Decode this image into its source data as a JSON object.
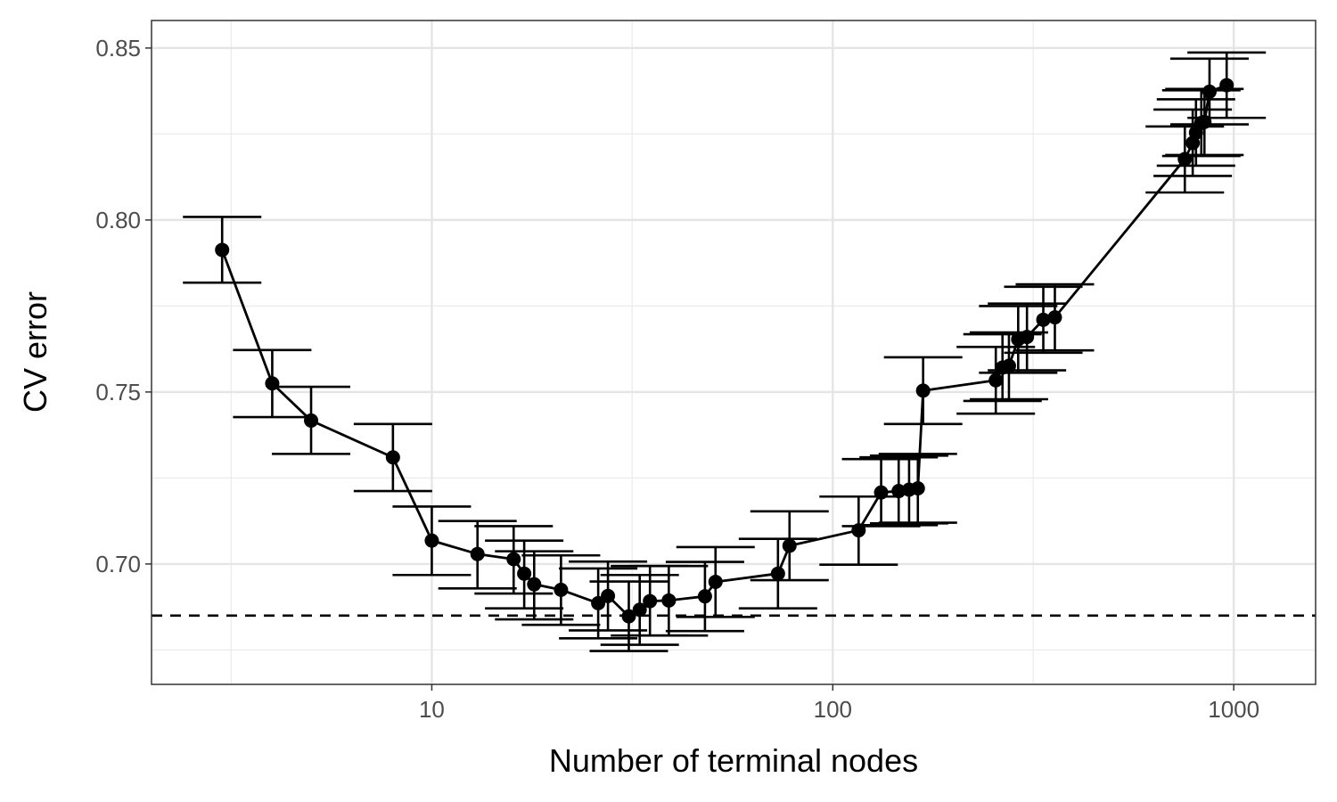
{
  "chart_data": {
    "type": "scatter",
    "xlabel": "Number of terminal nodes",
    "ylabel": "CV error",
    "x_scale": "log10",
    "xlim": [
      2,
      1600
    ],
    "ylim": [
      0.665,
      0.858
    ],
    "x_ticks": [
      10,
      100,
      1000
    ],
    "x_tick_labels": [
      "10",
      "100",
      "1000"
    ],
    "x_minor_ticks": [
      3.16,
      31.6,
      316
    ],
    "y_ticks": [
      0.7,
      0.75,
      0.8,
      0.85
    ],
    "y_tick_labels": [
      "0.70",
      "0.75",
      "0.80",
      "0.85"
    ],
    "y_minor_ticks": [
      0.675,
      0.725,
      0.775,
      0.825
    ],
    "grid": true,
    "reference_line": {
      "y": 0.685,
      "style": "dashed"
    },
    "points": [
      {
        "x": 3,
        "y": 0.7913,
        "lo": 0.7818,
        "hi": 0.8009
      },
      {
        "x": 4,
        "y": 0.7525,
        "lo": 0.7427,
        "hi": 0.7622
      },
      {
        "x": 5,
        "y": 0.7417,
        "lo": 0.732,
        "hi": 0.7515
      },
      {
        "x": 8,
        "y": 0.731,
        "lo": 0.7212,
        "hi": 0.7407
      },
      {
        "x": 10,
        "y": 0.7068,
        "lo": 0.6968,
        "hi": 0.7167
      },
      {
        "x": 13,
        "y": 0.7029,
        "lo": 0.6929,
        "hi": 0.7125
      },
      {
        "x": 16,
        "y": 0.7014,
        "lo": 0.6914,
        "hi": 0.711
      },
      {
        "x": 17,
        "y": 0.6972,
        "lo": 0.6871,
        "hi": 0.7068
      },
      {
        "x": 18,
        "y": 0.6941,
        "lo": 0.6839,
        "hi": 0.7037
      },
      {
        "x": 21,
        "y": 0.6925,
        "lo": 0.6823,
        "hi": 0.7025
      },
      {
        "x": 26,
        "y": 0.6886,
        "lo": 0.6784,
        "hi": 0.6987
      },
      {
        "x": 27.5,
        "y": 0.6907,
        "lo": 0.6807,
        "hi": 0.7007
      },
      {
        "x": 31,
        "y": 0.6848,
        "lo": 0.6747,
        "hi": 0.6949
      },
      {
        "x": 33,
        "y": 0.6867,
        "lo": 0.6765,
        "hi": 0.6968
      },
      {
        "x": 35,
        "y": 0.6892,
        "lo": 0.6792,
        "hi": 0.6994
      },
      {
        "x": 39,
        "y": 0.6894,
        "lo": 0.6792,
        "hi": 0.6994
      },
      {
        "x": 48,
        "y": 0.6906,
        "lo": 0.6805,
        "hi": 0.7006
      },
      {
        "x": 51,
        "y": 0.6948,
        "lo": 0.6846,
        "hi": 0.7049
      },
      {
        "x": 73,
        "y": 0.6972,
        "lo": 0.6871,
        "hi": 0.7073
      },
      {
        "x": 78,
        "y": 0.7053,
        "lo": 0.6953,
        "hi": 0.7153
      },
      {
        "x": 116,
        "y": 0.7098,
        "lo": 0.6998,
        "hi": 0.7196
      },
      {
        "x": 132,
        "y": 0.7208,
        "lo": 0.711,
        "hi": 0.7305
      },
      {
        "x": 146,
        "y": 0.7212,
        "lo": 0.7113,
        "hi": 0.731
      },
      {
        "x": 155,
        "y": 0.7216,
        "lo": 0.7118,
        "hi": 0.7315
      },
      {
        "x": 163,
        "y": 0.722,
        "lo": 0.712,
        "hi": 0.732
      },
      {
        "x": 168,
        "y": 0.7504,
        "lo": 0.7407,
        "hi": 0.7601
      },
      {
        "x": 255,
        "y": 0.7534,
        "lo": 0.7437,
        "hi": 0.7631
      },
      {
        "x": 265,
        "y": 0.7571,
        "lo": 0.7474,
        "hi": 0.7668
      },
      {
        "x": 275,
        "y": 0.7576,
        "lo": 0.7479,
        "hi": 0.7673
      },
      {
        "x": 290,
        "y": 0.7653,
        "lo": 0.7556,
        "hi": 0.775
      },
      {
        "x": 305,
        "y": 0.766,
        "lo": 0.7563,
        "hi": 0.7757
      },
      {
        "x": 335,
        "y": 0.771,
        "lo": 0.7614,
        "hi": 0.7806
      },
      {
        "x": 358,
        "y": 0.7717,
        "lo": 0.7621,
        "hi": 0.7813
      },
      {
        "x": 755,
        "y": 0.8177,
        "lo": 0.808,
        "hi": 0.8272
      },
      {
        "x": 790,
        "y": 0.8224,
        "lo": 0.8128,
        "hi": 0.8321
      },
      {
        "x": 805,
        "y": 0.8254,
        "lo": 0.8158,
        "hi": 0.8351
      },
      {
        "x": 830,
        "y": 0.8282,
        "lo": 0.8186,
        "hi": 0.8377
      },
      {
        "x": 845,
        "y": 0.8285,
        "lo": 0.8189,
        "hi": 0.8381
      },
      {
        "x": 870,
        "y": 0.8373,
        "lo": 0.8278,
        "hi": 0.8469
      },
      {
        "x": 960,
        "y": 0.8392,
        "lo": 0.8297,
        "hi": 0.8487
      }
    ]
  }
}
